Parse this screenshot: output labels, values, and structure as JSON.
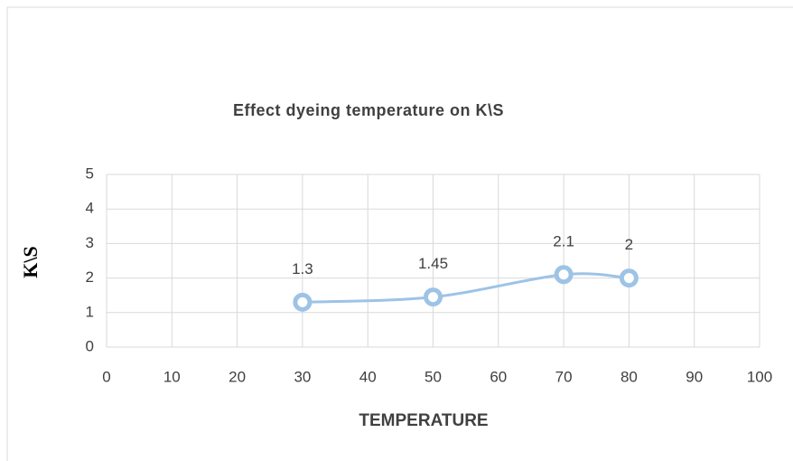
{
  "chart_data": {
    "type": "line",
    "smooth": true,
    "title": "Effect dyeing temperature on K\\S",
    "x_label": "TEMPERATURE",
    "y_label": "K\\S",
    "x": [
      30,
      50,
      70,
      80
    ],
    "values": [
      1.3,
      1.45,
      2.1,
      2
    ],
    "color": "#9dc3e6",
    "xlim": [
      0,
      100
    ],
    "xticks": [
      0,
      10,
      20,
      30,
      40,
      50,
      60,
      70,
      80,
      90,
      100
    ],
    "ylim": [
      0,
      5
    ],
    "yticks": [
      0,
      1,
      2,
      3,
      4,
      5
    ],
    "grid": true,
    "data_labels": true
  }
}
